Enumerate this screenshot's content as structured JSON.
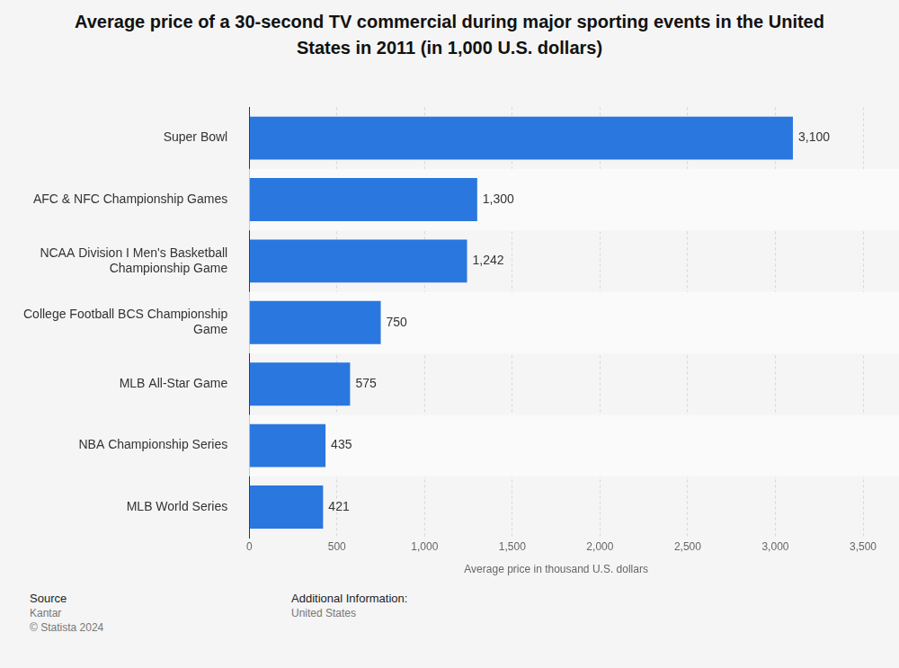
{
  "chart_data": {
    "type": "bar",
    "orientation": "horizontal",
    "title": "Average price of a 30-second TV commercial during major sporting events in the United States in 2011 (in 1,000 U.S. dollars)",
    "x_label": "Average price in thousand U.S. dollars",
    "categories": [
      "Super Bowl",
      "AFC & NFC Championship Games",
      "NCAA Division I Men's Basketball Championship Game",
      "College Football BCS Championship Game",
      "MLB All-Star Game",
      "NBA Championship Series",
      "MLB World Series"
    ],
    "values": [
      3100,
      1300,
      1242,
      750,
      575,
      435,
      421
    ],
    "value_labels": [
      "3,100",
      "1,300",
      "1,242",
      "750",
      "575",
      "435",
      "421"
    ],
    "color": "#2a77df",
    "xlim": [
      0,
      3500
    ],
    "xticks": [
      0,
      500,
      {
        "value": 1000,
        "label": "1,000"
      },
      {
        "value": 1500,
        "label": "1,500"
      },
      {
        "value": 2000,
        "label": "2,000"
      },
      {
        "value": 2500,
        "label": "2,500"
      },
      {
        "value": 3000,
        "label": "3,000"
      },
      {
        "value": 3500,
        "label": "3,500"
      }
    ],
    "grid": true,
    "data_labels": true
  },
  "footer": {
    "source_label": "Source",
    "source": "Kantar",
    "copyright": "© Statista 2024",
    "info_label": "Additional Information:",
    "info": "United States"
  }
}
